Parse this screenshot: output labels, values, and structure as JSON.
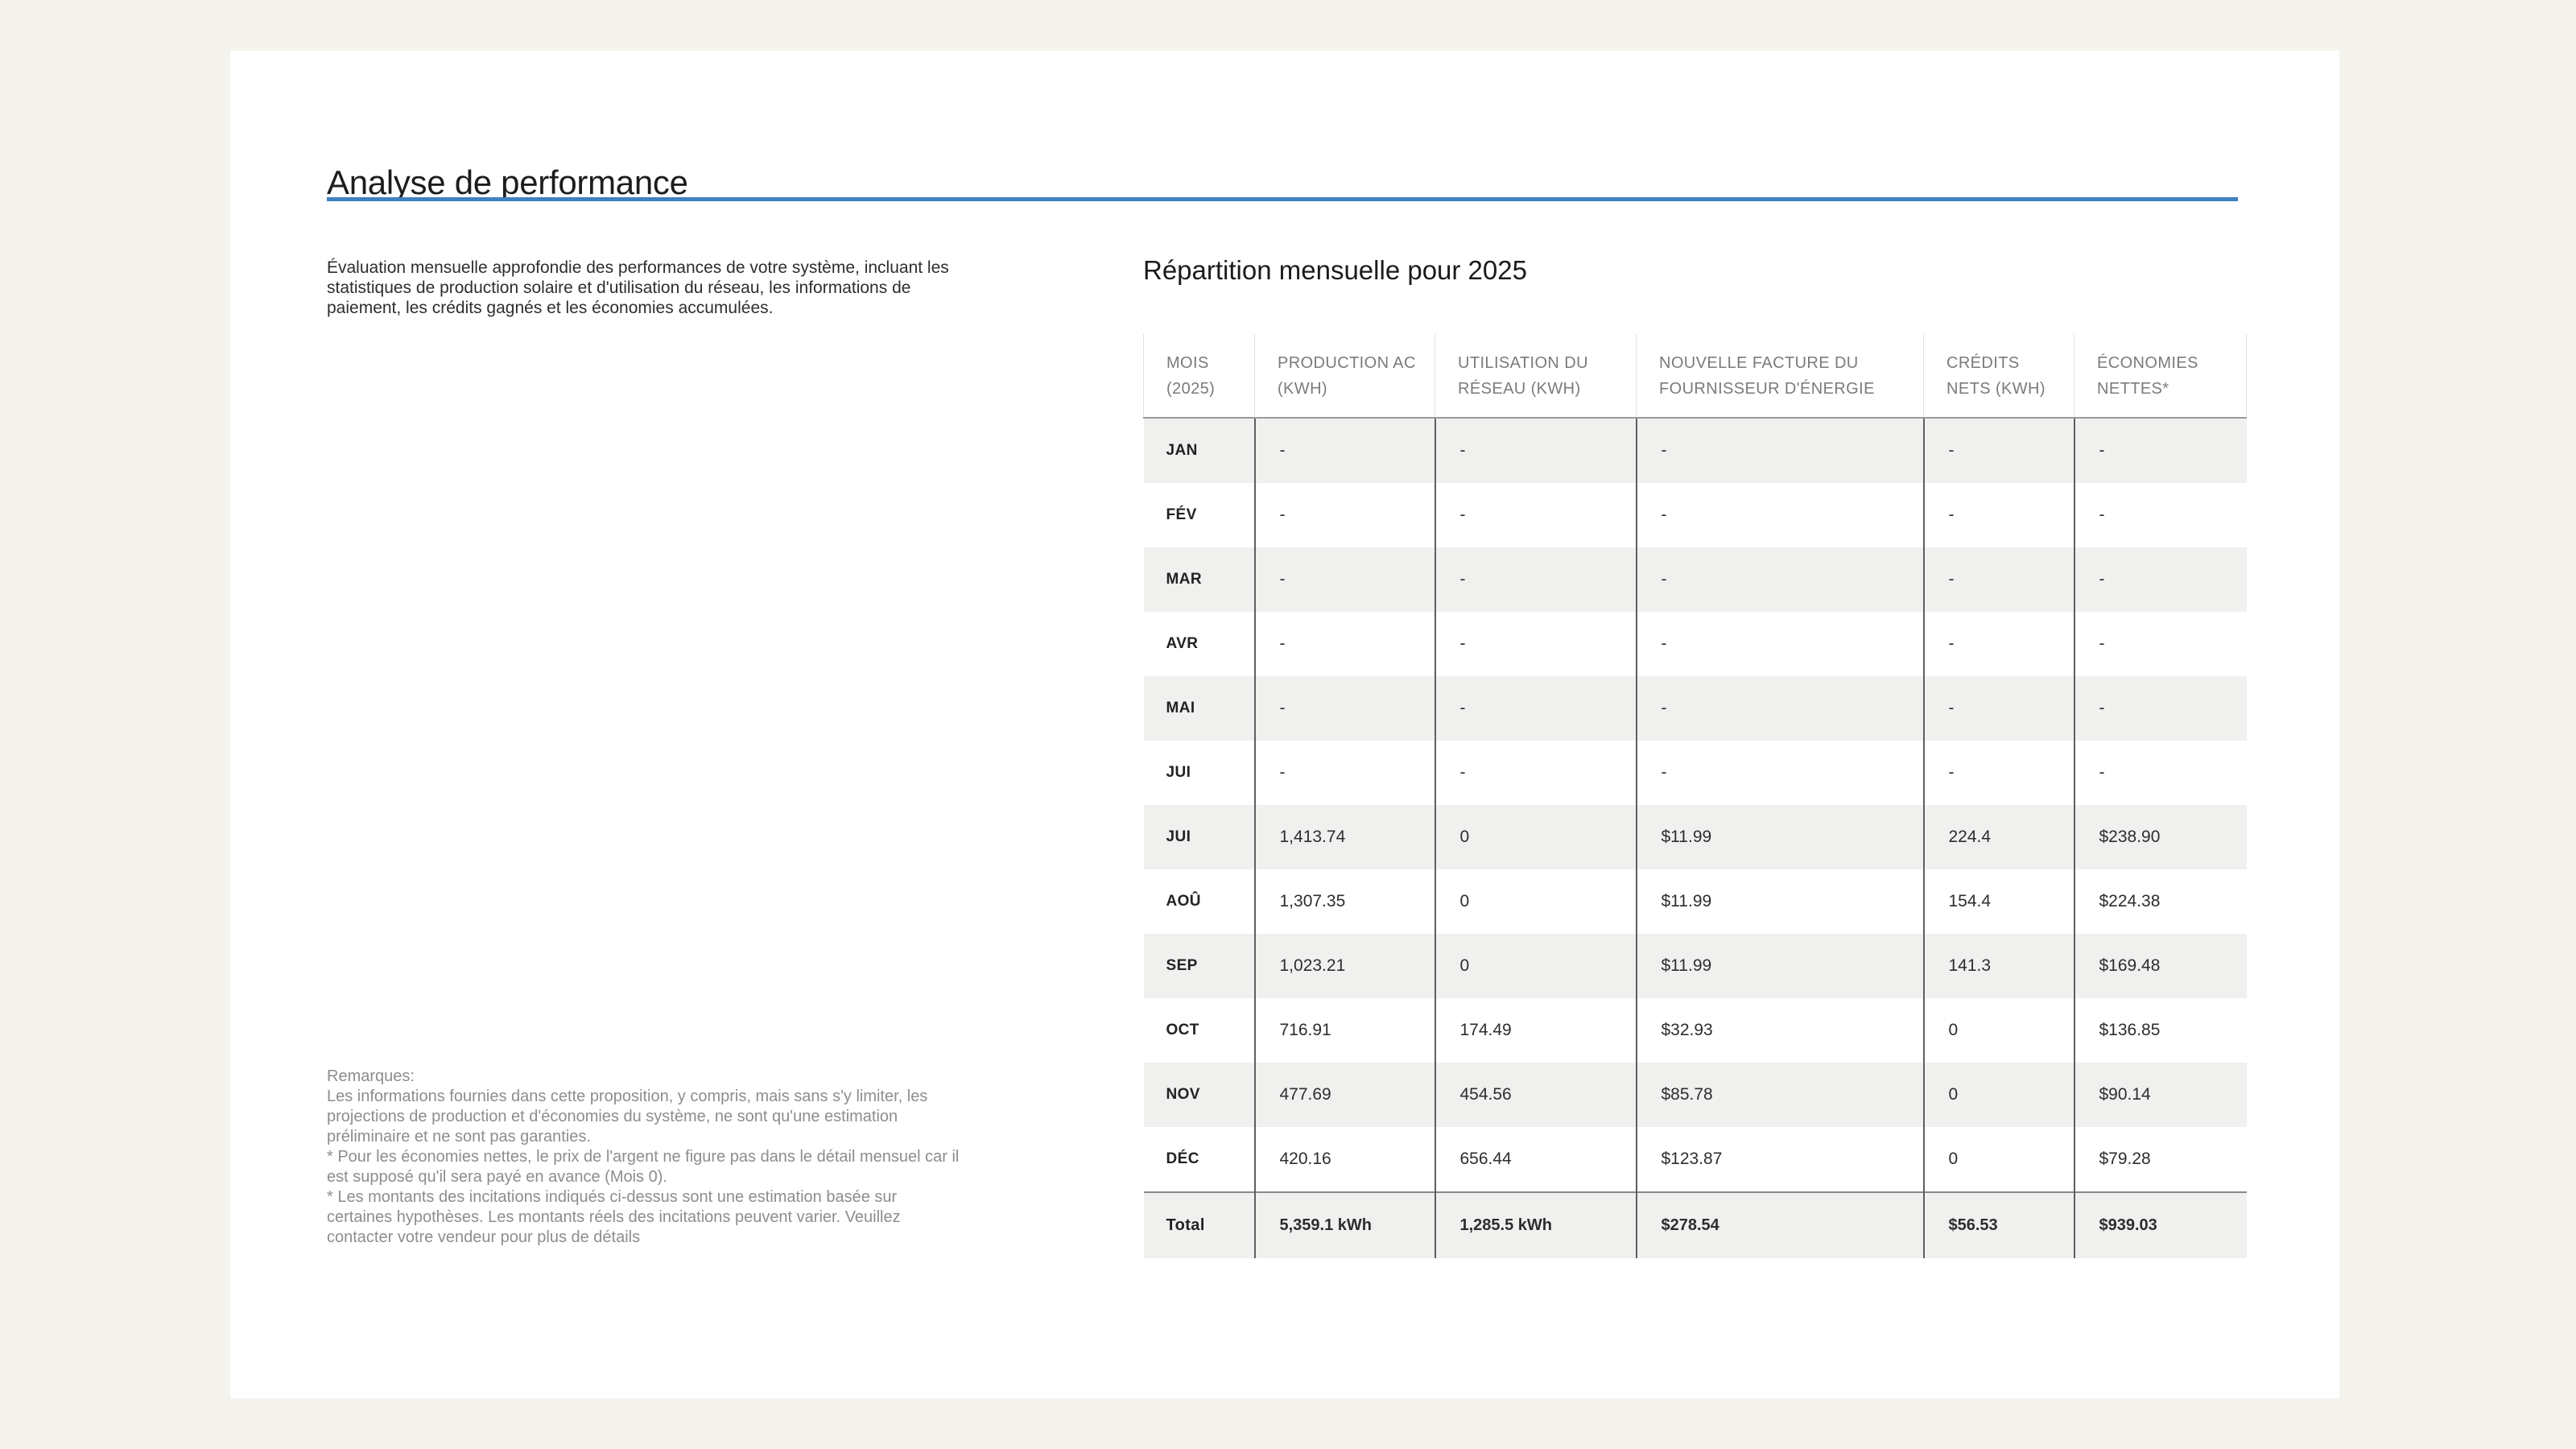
{
  "page": {
    "title": "Analyse de performance",
    "background_color": "#f5f3ee",
    "card_color": "#ffffff",
    "accent_color": "#3e82c1"
  },
  "left_column": {
    "description_lines": [
      "Évaluation mensuelle approfondie des performances de votre système, incluant les",
      "statistiques de production solaire et d'utilisation du réseau, les informations de",
      "paiement, les crédits gagnés et les économies accumulées."
    ],
    "remarks": {
      "heading": "Remarques:",
      "lines": [
        "Les informations fournies dans cette proposition, y compris, mais sans s'y limiter, les",
        "projections de production et d'économies du système, ne sont qu'une estimation",
        "préliminaire et ne sont pas garanties.",
        "* Pour les économies nettes, le prix de l'argent ne figure pas dans le détail mensuel car il",
        "est supposé qu'il sera payé en avance (Mois 0).",
        "* Les montants des incitations indiqués ci-dessus sont une estimation basée sur",
        "certaines hypothèses. Les montants réels des incitations peuvent varier. Veuillez",
        "contacter votre vendeur pour plus de détails"
      ]
    }
  },
  "table_section": {
    "title": "Répartition mensuelle pour 2025",
    "stripe_color": "#f0f0ef",
    "columns": [
      "MOIS (2025)",
      "PRODUCTION AC (KWH)",
      "UTILISATION DU RÉSEAU (KWH)",
      "NOUVELLE FACTURE DU FOURNISSEUR D'ÉNERGIE",
      "CRÉDITS NETS (KWH)",
      "ÉCONOMIES NETTES*"
    ],
    "rows": [
      [
        "JAN",
        "-",
        "-",
        "-",
        "-",
        "-"
      ],
      [
        "FÉV",
        "-",
        "-",
        "-",
        "-",
        "-"
      ],
      [
        "MAR",
        "-",
        "-",
        "-",
        "-",
        "-"
      ],
      [
        "AVR",
        "-",
        "-",
        "-",
        "-",
        "-"
      ],
      [
        "MAI",
        "-",
        "-",
        "-",
        "-",
        "-"
      ],
      [
        "JUI",
        "-",
        "-",
        "-",
        "-",
        "-"
      ],
      [
        "JUI",
        "1,413.74",
        "0",
        "$11.99",
        "224.4",
        "$238.90"
      ],
      [
        "AOÛ",
        "1,307.35",
        "0",
        "$11.99",
        "154.4",
        "$224.38"
      ],
      [
        "SEP",
        "1,023.21",
        "0",
        "$11.99",
        "141.3",
        "$169.48"
      ],
      [
        "OCT",
        "716.91",
        "174.49",
        "$32.93",
        "0",
        "$136.85"
      ],
      [
        "NOV",
        "477.69",
        "454.56",
        "$85.78",
        "0",
        "$90.14"
      ],
      [
        "DÉC",
        "420.16",
        "656.44",
        "$123.87",
        "0",
        "$79.28"
      ]
    ],
    "total_row": [
      "Total",
      "5,359.1 kWh",
      "1,285.5 kWh",
      "$278.54",
      "$56.53",
      "$939.03"
    ]
  }
}
